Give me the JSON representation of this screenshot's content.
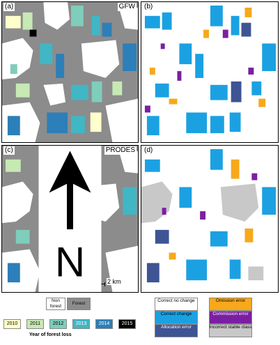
{
  "panels": {
    "a": {
      "label": "(a)",
      "title": "GFW"
    },
    "b": {
      "label": "(b)"
    },
    "c": {
      "label": "(c)",
      "title": "PRODES"
    },
    "d": {
      "label": "(d)"
    }
  },
  "scalebar": {
    "label": "2 km"
  },
  "north_arrow": {
    "label": "N"
  },
  "legend_classes": {
    "non_forest": "Non forest",
    "forest": "Forest"
  },
  "years": [
    "2010",
    "2011",
    "2012",
    "2013",
    "2014",
    "2015"
  ],
  "year_colors": [
    "#ffffcc",
    "#c7e9b4",
    "#7fcdbb",
    "#41b6c4",
    "#2c7fb8",
    "#000000"
  ],
  "year_axis_label": "Year of forest loss",
  "accuracy_legend": {
    "correct_no_change": "Correct no change",
    "correct_change": "Correct change",
    "allocation_error": "Allocation error",
    "omission_error": "Omission error",
    "commission_error": "Commission error",
    "incorrect_stable": "Incorrect stable class"
  },
  "colors": {
    "forest": "#8c8c8c",
    "non_forest": "#ffffff",
    "correct_change": "#1ba1e2",
    "allocation_error": "#3e5494",
    "omission_error": "#f7a81b",
    "commission_error": "#7b1fa2",
    "incorrect_stable": "#c8c8c8"
  }
}
